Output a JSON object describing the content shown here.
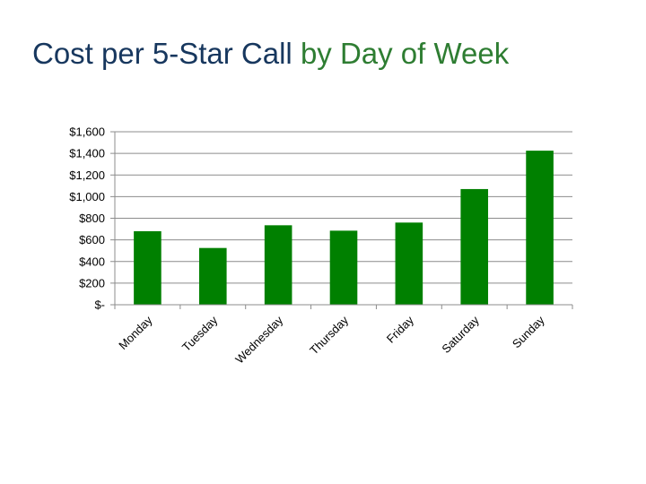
{
  "slide": {
    "title_part1": "Cost per 5-Star Call",
    "title_part2": "by Day of Week",
    "title_color_primary": "#17375e",
    "title_color_accent": "#2e7d32"
  },
  "chart_data": {
    "type": "bar",
    "title": "",
    "xlabel": "",
    "ylabel": "",
    "categories": [
      "Monday",
      "Tuesday",
      "Wednesday",
      "Thursday",
      "Friday",
      "Saturday",
      "Sunday"
    ],
    "values": [
      680,
      525,
      735,
      685,
      760,
      1070,
      1425
    ],
    "ylim": [
      0,
      1600
    ],
    "y_ticks": [
      0,
      200,
      400,
      600,
      800,
      1000,
      1200,
      1400,
      1600
    ],
    "y_tick_labels": [
      "$-",
      "$200",
      "$400",
      "$600",
      "$800",
      "$1,000",
      "$1,200",
      "$1,400",
      "$1,600"
    ],
    "bar_color": "#008000",
    "grid": true,
    "legend": "none"
  }
}
